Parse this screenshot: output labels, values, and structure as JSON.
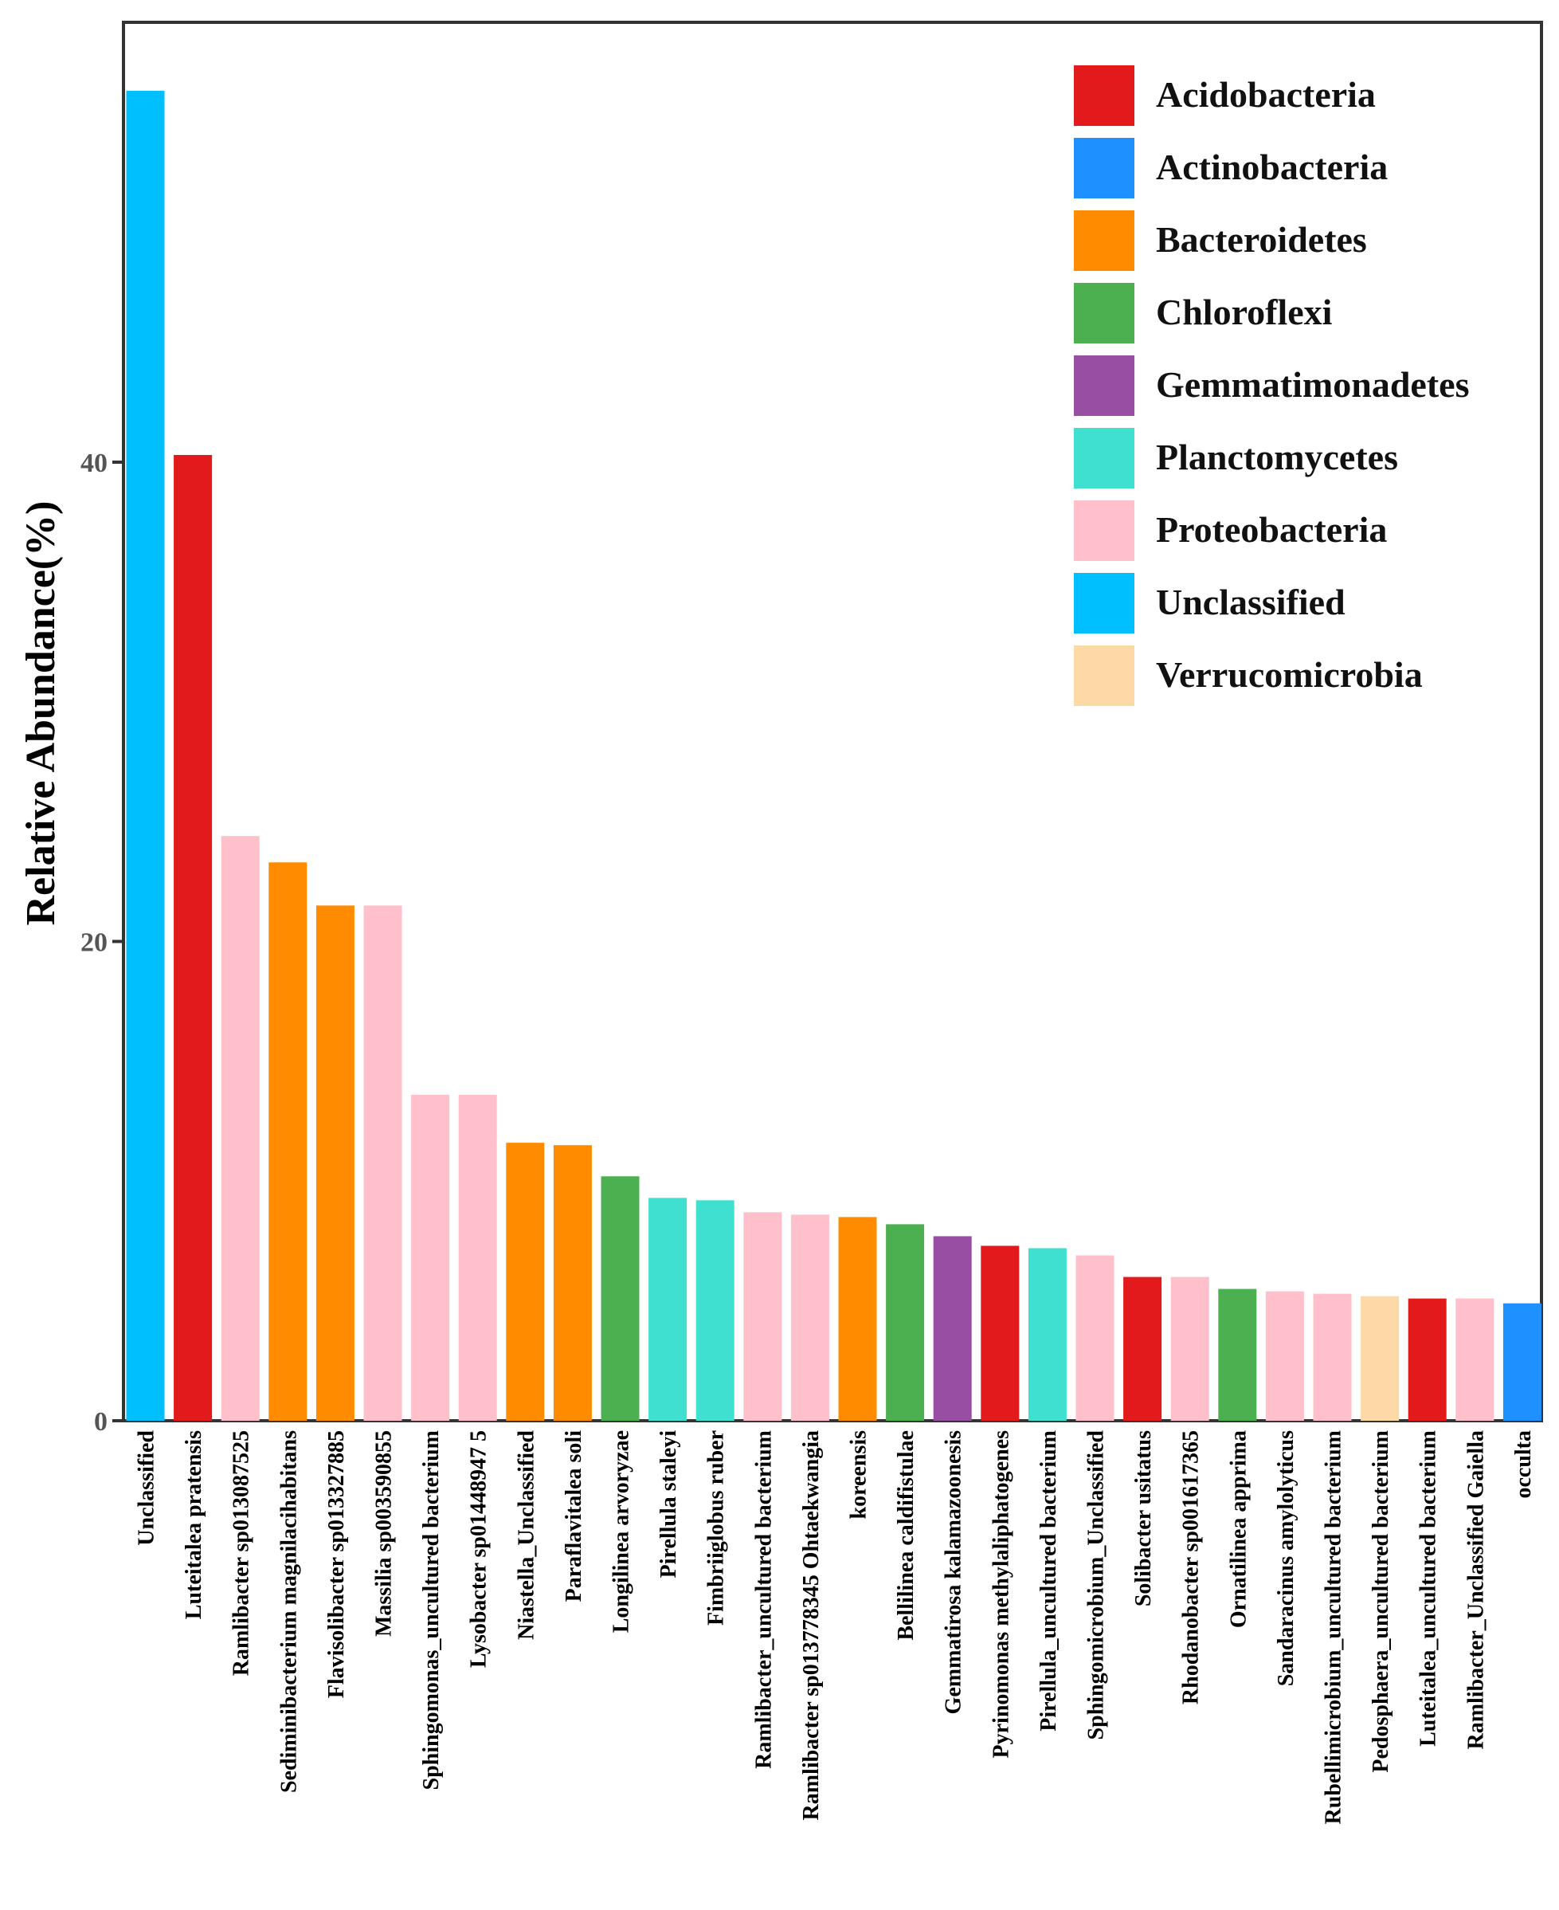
{
  "chart_data": {
    "type": "bar",
    "title": "",
    "xlabel": "",
    "ylabel": "Relative Abundance(%)",
    "ylim": [
      0,
      60
    ],
    "yticks": [
      0,
      20,
      40
    ],
    "grid": false,
    "legend_position": "top-right",
    "categories": [
      "Unclassified",
      "Luteitalea pratensis",
      "Ramlibacter sp013087525",
      "Sediminibacterium magnilacihabitans",
      "Flavisolibacter sp013327885",
      "Massilia sp003590855",
      "Sphingomonas_uncultured bacterium",
      "Lysobacter sp01448947 5",
      "Niastella_Unclassified",
      "Paraflavitalea soli",
      "Longilinea arvoryzae",
      "Pirellula staleyi",
      "Fimbriiglobus ruber",
      "Ramlibacter_uncultured bacterium",
      "Ramlibacter sp013778345 Ohtaekwangia",
      "koreensis",
      "Bellilinea caldifistulae",
      "Gemmatirosa kalamazoonesis",
      "Pyrinomonas methylaliphatogenes",
      "Pirellula_uncultured bacterium",
      "Sphingomicrobium_Unclassified",
      "Solibacter usitatus",
      "Rhodanobacter sp001617365",
      "Ornatilinea apprima",
      "Sandaracinus amylolyticus",
      "Rubellimicrobium_uncultured bacterium",
      "Pedosphaera_uncultured bacterium",
      "Luteitalea_uncultured bacterium",
      "Ramlibacter_Unclassified Gaiella",
      "occulta"
    ],
    "values": [
      55.5,
      40.3,
      24.4,
      23.3,
      21.5,
      21.5,
      13.6,
      13.6,
      11.6,
      11.5,
      10.2,
      9.3,
      9.2,
      8.7,
      8.6,
      8.5,
      8.2,
      7.7,
      7.3,
      7.2,
      6.9,
      6.0,
      6.0,
      5.5,
      5.4,
      5.3,
      5.2,
      5.1,
      5.1,
      4.9
    ],
    "phyla": [
      "Unclassified",
      "Acidobacteria",
      "Proteobacteria",
      "Bacteroidetes",
      "Bacteroidetes",
      "Proteobacteria",
      "Proteobacteria",
      "Proteobacteria",
      "Bacteroidetes",
      "Bacteroidetes",
      "Chloroflexi",
      "Planctomycetes",
      "Planctomycetes",
      "Proteobacteria",
      "Proteobacteria",
      "Bacteroidetes",
      "Chloroflexi",
      "Gemmatimonadetes",
      "Acidobacteria",
      "Planctomycetes",
      "Proteobacteria",
      "Acidobacteria",
      "Proteobacteria",
      "Chloroflexi",
      "Proteobacteria",
      "Proteobacteria",
      "Verrucomicrobia",
      "Acidobacteria",
      "Proteobacteria",
      "Actinobacteria"
    ],
    "legend": [
      {
        "name": "Acidobacteria",
        "color": "#e31a1c"
      },
      {
        "name": "Actinobacteria",
        "color": "#1e90ff"
      },
      {
        "name": "Bacteroidetes",
        "color": "#ff8c00"
      },
      {
        "name": "Chloroflexi",
        "color": "#4caf50"
      },
      {
        "name": "Gemmatimonadetes",
        "color": "#984ea3"
      },
      {
        "name": "Planctomycetes",
        "color": "#40e0d0"
      },
      {
        "name": "Proteobacteria",
        "color": "#ffc0cb"
      },
      {
        "name": "Unclassified",
        "color": "#00bfff"
      },
      {
        "name": "Verrucomicrobia",
        "color": "#fdd9a8"
      }
    ]
  }
}
